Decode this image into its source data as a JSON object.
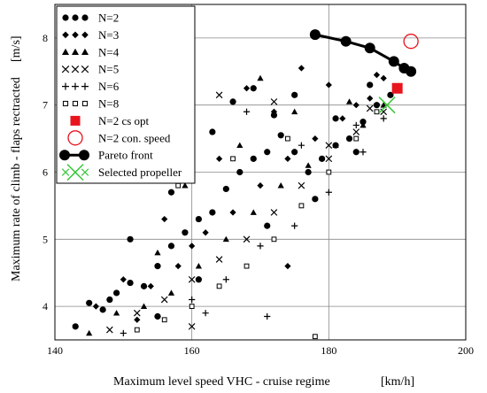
{
  "chart_data": {
    "type": "scatter",
    "xlabel": "Maximum level speed VHC - cruise regime",
    "xunit": "[km/h]",
    "ylabel": "Maximum rate of climb - flaps rectracted",
    "yunit": "[m/s]",
    "xlim": [
      140,
      200
    ],
    "ylim": [
      3.5,
      8.5
    ],
    "x_ticks": [
      140,
      160,
      180,
      200
    ],
    "y_ticks": [
      4,
      5,
      6,
      7,
      8
    ],
    "grid": true,
    "legend_position": "top-left",
    "series": [
      {
        "name": "N=2",
        "marker": "circle",
        "color": "#000000",
        "x": [
          143,
          145,
          147,
          149,
          151,
          153,
          155,
          157,
          159,
          161,
          163,
          165,
          167,
          169,
          171,
          173,
          175,
          177,
          179,
          181,
          183,
          185,
          187,
          189,
          151,
          157,
          163,
          169,
          175,
          181,
          186,
          166,
          172,
          178,
          184,
          161,
          171,
          155,
          148
        ],
        "y": [
          3.7,
          4.05,
          3.95,
          4.2,
          4.35,
          4.3,
          4.6,
          4.9,
          5.1,
          5.3,
          5.4,
          5.75,
          6.0,
          6.2,
          6.3,
          6.55,
          6.3,
          6.0,
          6.2,
          6.4,
          6.5,
          6.75,
          7.0,
          7.15,
          5.0,
          5.7,
          6.6,
          7.25,
          7.15,
          6.8,
          7.3,
          7.05,
          6.85,
          5.6,
          6.3,
          4.4,
          5.2,
          3.85,
          4.1
        ]
      },
      {
        "name": "N=3",
        "marker": "diamond",
        "color": "#000000",
        "x": [
          146,
          150,
          154,
          158,
          162,
          166,
          170,
          174,
          178,
          182,
          186,
          188,
          156,
          164,
          172,
          180,
          168,
          176,
          152,
          160,
          184,
          187,
          174
        ],
        "y": [
          4.0,
          4.4,
          4.3,
          4.6,
          5.1,
          5.4,
          5.8,
          6.2,
          6.5,
          6.8,
          7.1,
          7.4,
          5.3,
          6.2,
          6.9,
          7.3,
          7.25,
          7.55,
          3.8,
          4.9,
          7.0,
          7.45,
          4.6
        ]
      },
      {
        "name": "N=4",
        "marker": "triangle",
        "color": "#000000",
        "x": [
          145,
          149,
          153,
          157,
          161,
          165,
          169,
          173,
          177,
          181,
          185,
          188,
          159,
          167,
          175,
          183,
          170,
          155
        ],
        "y": [
          3.6,
          3.9,
          4.0,
          4.2,
          4.6,
          5.0,
          5.4,
          5.8,
          6.1,
          6.4,
          6.7,
          7.0,
          5.8,
          6.4,
          6.9,
          7.05,
          7.4,
          4.8
        ]
      },
      {
        "name": "N=5",
        "marker": "x",
        "color": "#000000",
        "x": [
          148,
          152,
          156,
          160,
          164,
          168,
          172,
          176,
          180,
          184,
          188,
          164,
          172,
          180,
          186,
          160
        ],
        "y": [
          3.65,
          3.9,
          4.1,
          4.4,
          4.7,
          5.0,
          5.4,
          5.8,
          6.2,
          6.6,
          6.9,
          7.15,
          7.05,
          6.4,
          6.95,
          3.7
        ]
      },
      {
        "name": "N=6",
        "marker": "plus",
        "color": "#000000",
        "x": [
          150,
          155,
          160,
          165,
          170,
          175,
          180,
          185,
          188,
          168,
          176,
          184,
          162,
          171
        ],
        "y": [
          3.6,
          3.85,
          4.1,
          4.4,
          4.9,
          5.2,
          5.7,
          6.3,
          6.8,
          6.9,
          6.4,
          6.7,
          3.9,
          3.85
        ]
      },
      {
        "name": "N=8",
        "marker": "square",
        "color": "#000000",
        "x": [
          152,
          156,
          160,
          164,
          168,
          172,
          176,
          180,
          184,
          187,
          166,
          174,
          158,
          178
        ],
        "y": [
          3.65,
          3.8,
          4.0,
          4.3,
          4.6,
          5.0,
          5.5,
          6.0,
          6.5,
          6.9,
          6.2,
          6.5,
          5.8,
          3.55
        ]
      },
      {
        "name": "N=2 cs opt",
        "marker": "filled-square",
        "color": "#e8141e",
        "x": [
          190.0
        ],
        "y": [
          7.25
        ]
      },
      {
        "name": "N=2 con. speed",
        "marker": "open-circle",
        "color": "#e8141e",
        "x": [
          192.0
        ],
        "y": [
          7.95
        ]
      },
      {
        "name": "Pareto front",
        "marker": "circle-line",
        "color": "#000000",
        "x": [
          178.0,
          182.5,
          186.0,
          189.5,
          191.0,
          192.0
        ],
        "y": [
          8.05,
          7.95,
          7.85,
          7.65,
          7.55,
          7.5
        ]
      },
      {
        "name": "Selected propeller",
        "marker": "x",
        "color": "#36c736",
        "x": [
          188.5
        ],
        "y": [
          7.0
        ]
      }
    ]
  }
}
